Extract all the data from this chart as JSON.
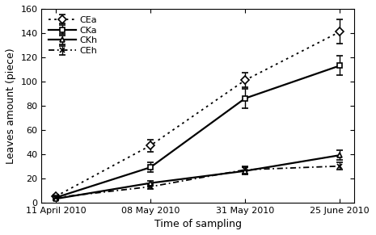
{
  "x_labels": [
    "11 April 2010",
    "08 May 2010",
    "31 May 2010",
    "25 June 2010"
  ],
  "x_positions": [
    0,
    1,
    2,
    3
  ],
  "series": {
    "CEa": {
      "values": [
        5,
        47,
        101,
        141
      ],
      "errors": [
        1.5,
        5,
        6,
        10
      ],
      "linestyle": "dotted",
      "marker": "D",
      "color": "#000000",
      "linewidth": 1.3,
      "markersize": 5,
      "markerfacecolor": "white"
    },
    "CKa": {
      "values": [
        4,
        29,
        86,
        113
      ],
      "errors": [
        1,
        4,
        8,
        8
      ],
      "linestyle": "solid",
      "marker": "s",
      "color": "#000000",
      "linewidth": 1.6,
      "markersize": 5,
      "markerfacecolor": "white"
    },
    "CKh": {
      "values": [
        3,
        16,
        26,
        39
      ],
      "errors": [
        0.5,
        2,
        3,
        4
      ],
      "linestyle": "solid",
      "marker": "^",
      "color": "#000000",
      "linewidth": 1.6,
      "markersize": 5,
      "markerfacecolor": "white"
    },
    "CEh": {
      "values": [
        4,
        13,
        27,
        30
      ],
      "errors": [
        1,
        2,
        3,
        3
      ],
      "linestyle": "dashdot",
      "marker": "x",
      "color": "#000000",
      "linewidth": 1.3,
      "markersize": 5,
      "markerfacecolor": "black"
    }
  },
  "ylabel": "Leaves amount (piece)",
  "xlabel": "Time of sampling",
  "ylim": [
    0,
    160
  ],
  "yticks": [
    0,
    20,
    40,
    60,
    80,
    100,
    120,
    140,
    160
  ],
  "background_color": "#ffffff",
  "legend_fontsize": 8,
  "tick_fontsize": 8,
  "label_fontsize": 9
}
